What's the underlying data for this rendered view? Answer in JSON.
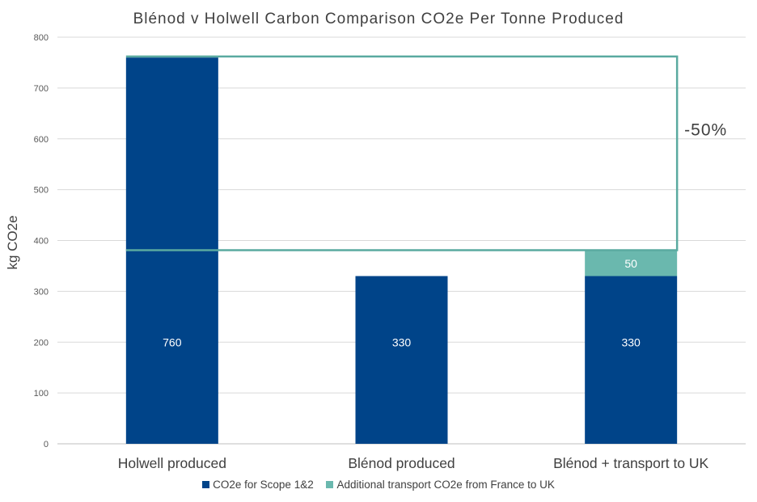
{
  "chart_data": {
    "type": "bar",
    "stacked": true,
    "title": "Blénod v Holwell Carbon Comparison CO2e Per Tonne Produced",
    "ylabel": "kg CO2e",
    "xlabel": "",
    "ylim": [
      0,
      800
    ],
    "yticks": [
      "0",
      "100",
      "200",
      "300",
      "400",
      "500",
      "600",
      "700",
      "800"
    ],
    "grid": true,
    "legend_position": "bottom",
    "categories": [
      "Holwell produced",
      "Blénod produced",
      "Blénod + transport to UK"
    ],
    "series": [
      {
        "name": "CO2e for Scope 1&2",
        "values": [
          760,
          330,
          330
        ],
        "labels": [
          "760",
          "330",
          "330"
        ],
        "color": "#004489"
      },
      {
        "name": "Additional transport CO2e from France to UK",
        "values": [
          0,
          0,
          50
        ],
        "labels": [
          "",
          "",
          "50"
        ],
        "color": "#6ab8ae"
      }
    ],
    "annotation": {
      "text": "-50%",
      "from_value": 762,
      "to_value": 381,
      "color": "#5aaaa0"
    }
  }
}
